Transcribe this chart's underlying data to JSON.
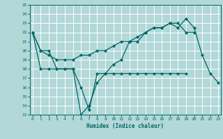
{
  "background_color": "#b2d8d8",
  "grid_color": "#ffffff",
  "line_color": "#006666",
  "x_ticks": [
    0,
    1,
    2,
    3,
    4,
    5,
    6,
    7,
    8,
    9,
    10,
    11,
    12,
    13,
    14,
    15,
    16,
    17,
    18,
    19,
    20,
    21,
    22,
    23
  ],
  "y_ticks": [
    13,
    14,
    15,
    16,
    17,
    18,
    19,
    20,
    21,
    22,
    23,
    24,
    25
  ],
  "ylim": [
    13,
    25
  ],
  "xlim": [
    -0.3,
    23.3
  ],
  "xlabel": "Humidex (Indice chaleur)",
  "series": [
    [
      22,
      20,
      20,
      18,
      18,
      18,
      16,
      13.5,
      17.5,
      17.5,
      18.5,
      19,
      21,
      21,
      22,
      22.5,
      22.5,
      23,
      22.5,
      23.5,
      22.5,
      19.5,
      17.5,
      16.5
    ],
    [
      22,
      20,
      19.5,
      19,
      19,
      19,
      19.5,
      19.5,
      20,
      20,
      20.5,
      21,
      21,
      21.5,
      22,
      22.5,
      22.5,
      23,
      23,
      22,
      22,
      null,
      null,
      null
    ],
    [
      22,
      18,
      18,
      18,
      18,
      18,
      13,
      14,
      16.5,
      17.5,
      17.5,
      17.5,
      17.5,
      17.5,
      17.5,
      17.5,
      17.5,
      17.5,
      17.5,
      17.5,
      null,
      null,
      null,
      null
    ]
  ]
}
